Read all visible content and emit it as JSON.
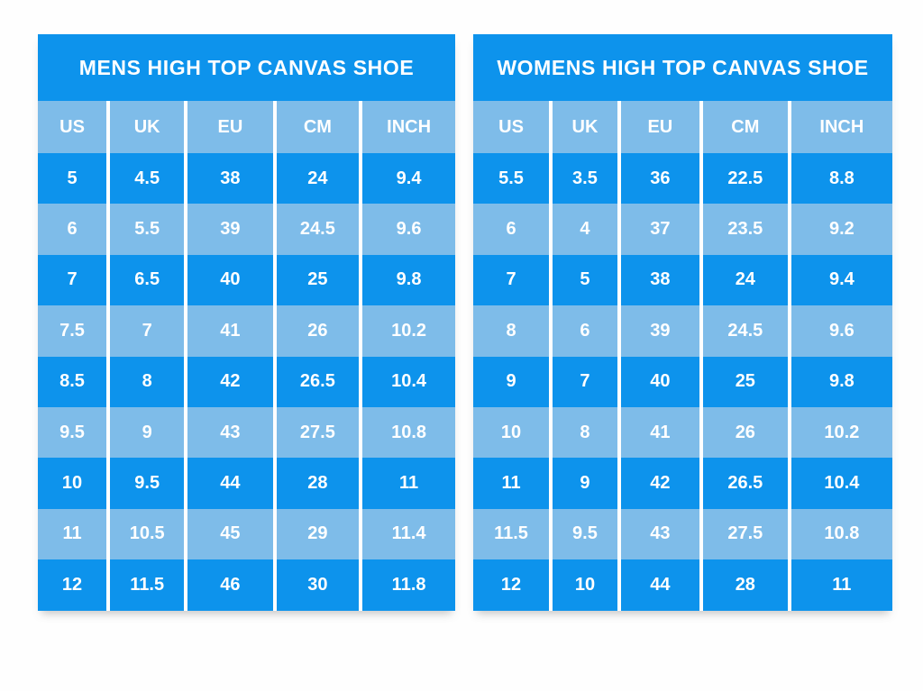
{
  "colors": {
    "primary_blue": "#0d93ec",
    "light_blue": "#7ebce9",
    "divider_white": "#ffffff",
    "text_white": "#ffffff",
    "background": "#fefefe"
  },
  "chart_data": [
    {
      "type": "table",
      "title": "MENS HIGH TOP CANVAS SHOE",
      "columns": [
        "US",
        "UK",
        "EU",
        "CM",
        "INCH"
      ],
      "rows": [
        [
          "5",
          "4.5",
          "38",
          "24",
          "9.4"
        ],
        [
          "6",
          "5.5",
          "39",
          "24.5",
          "9.6"
        ],
        [
          "7",
          "6.5",
          "40",
          "25",
          "9.8"
        ],
        [
          "7.5",
          "7",
          "41",
          "26",
          "10.2"
        ],
        [
          "8.5",
          "8",
          "42",
          "26.5",
          "10.4"
        ],
        [
          "9.5",
          "9",
          "43",
          "27.5",
          "10.8"
        ],
        [
          "10",
          "9.5",
          "44",
          "28",
          "11"
        ],
        [
          "11",
          "10.5",
          "45",
          "29",
          "11.4"
        ],
        [
          "12",
          "11.5",
          "46",
          "30",
          "11.8"
        ]
      ]
    },
    {
      "type": "table",
      "title": "WOMENS HIGH TOP CANVAS SHOE",
      "columns": [
        "US",
        "UK",
        "EU",
        "CM",
        "INCH"
      ],
      "rows": [
        [
          "5.5",
          "3.5",
          "36",
          "22.5",
          "8.8"
        ],
        [
          "6",
          "4",
          "37",
          "23.5",
          "9.2"
        ],
        [
          "7",
          "5",
          "38",
          "24",
          "9.4"
        ],
        [
          "8",
          "6",
          "39",
          "24.5",
          "9.6"
        ],
        [
          "9",
          "7",
          "40",
          "25",
          "9.8"
        ],
        [
          "10",
          "8",
          "41",
          "26",
          "10.2"
        ],
        [
          "11",
          "9",
          "42",
          "26.5",
          "10.4"
        ],
        [
          "11.5",
          "9.5",
          "43",
          "27.5",
          "10.8"
        ],
        [
          "12",
          "10",
          "44",
          "28",
          "11"
        ]
      ]
    }
  ]
}
